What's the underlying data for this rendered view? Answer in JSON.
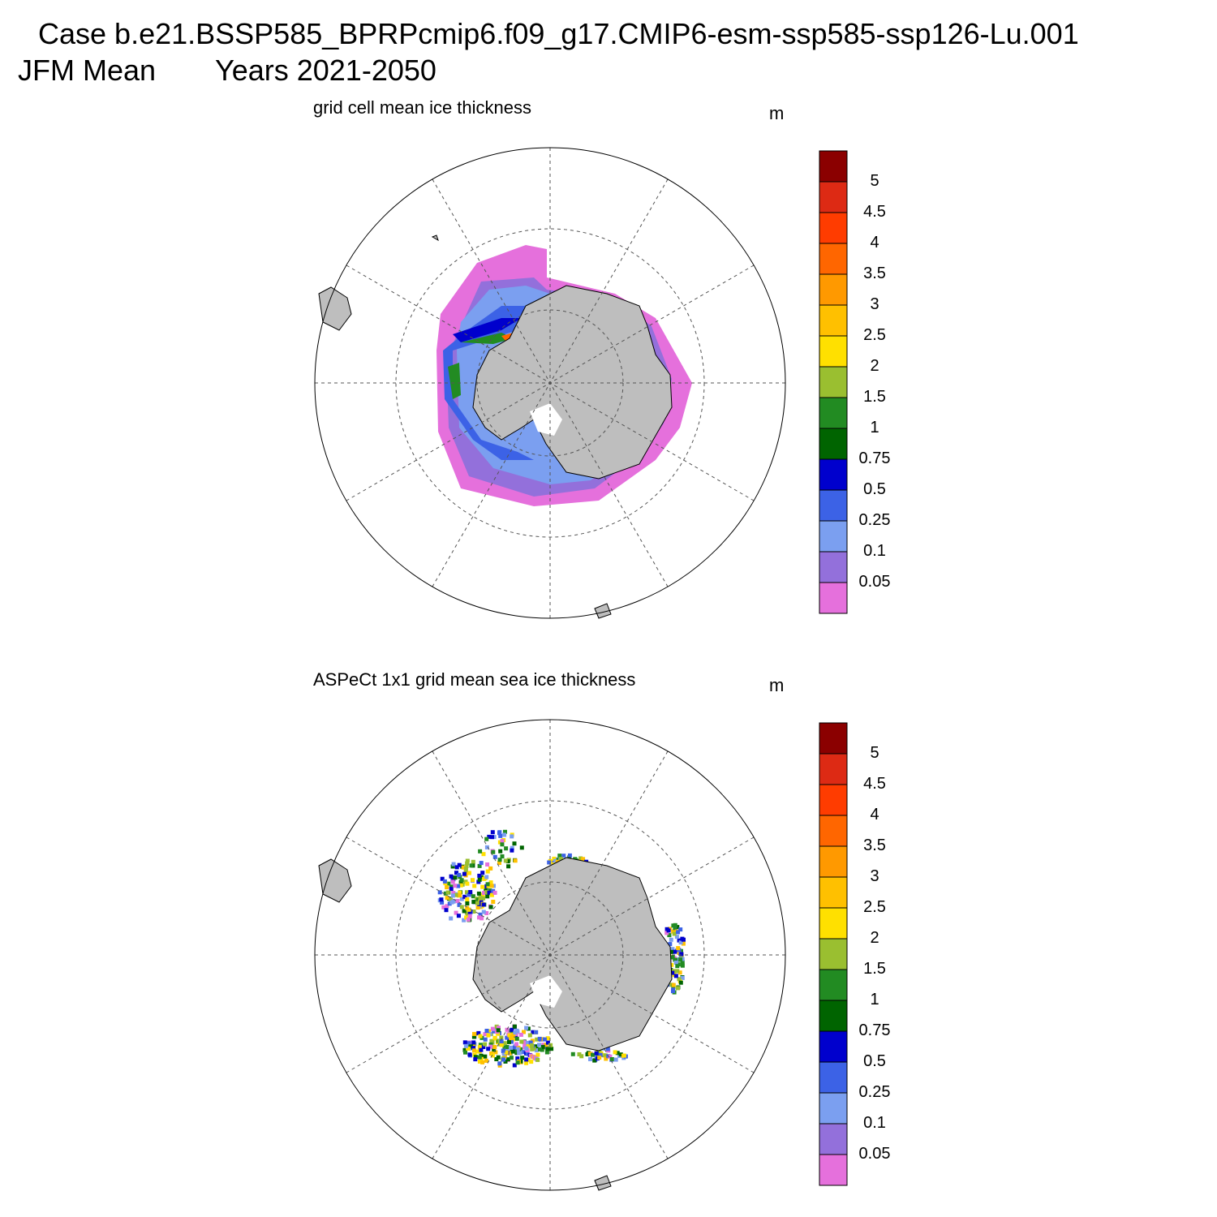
{
  "header": {
    "case_line": "Case b.e21.BSSP585_BPRPcmip6.f09_g17.CMIP6-esm-ssp585-ssp126-Lu.001",
    "season": "JFM Mean",
    "years": "Years 2021-2050"
  },
  "panels": [
    {
      "title": "grid cell mean ice thickness",
      "units": "m",
      "colorbar_labels": [
        "5",
        "4.5",
        "4",
        "3.5",
        "3",
        "2.5",
        "2",
        "1.5",
        "1",
        "0.75",
        "0.5",
        "0.25",
        "0.1",
        "0.05"
      ]
    },
    {
      "title": "ASPeCt 1x1 grid mean sea ice thickness",
      "units": "m",
      "colorbar_labels": [
        "5",
        "4.5",
        "4",
        "3.5",
        "3",
        "2.5",
        "2",
        "1.5",
        "1",
        "0.75",
        "0.5",
        "0.25",
        "0.1",
        "0.05"
      ]
    }
  ],
  "colorbar_colors": [
    "#8b0000",
    "#dd2a14",
    "#ff3c00",
    "#ff6600",
    "#ff9900",
    "#ffc000",
    "#ffe000",
    "#9abf30",
    "#228b22",
    "#006400",
    "#0000cd",
    "#3c62e6",
    "#7b9ff0",
    "#9370db",
    "#e570dc"
  ],
  "land_color": "#bebebe"
}
